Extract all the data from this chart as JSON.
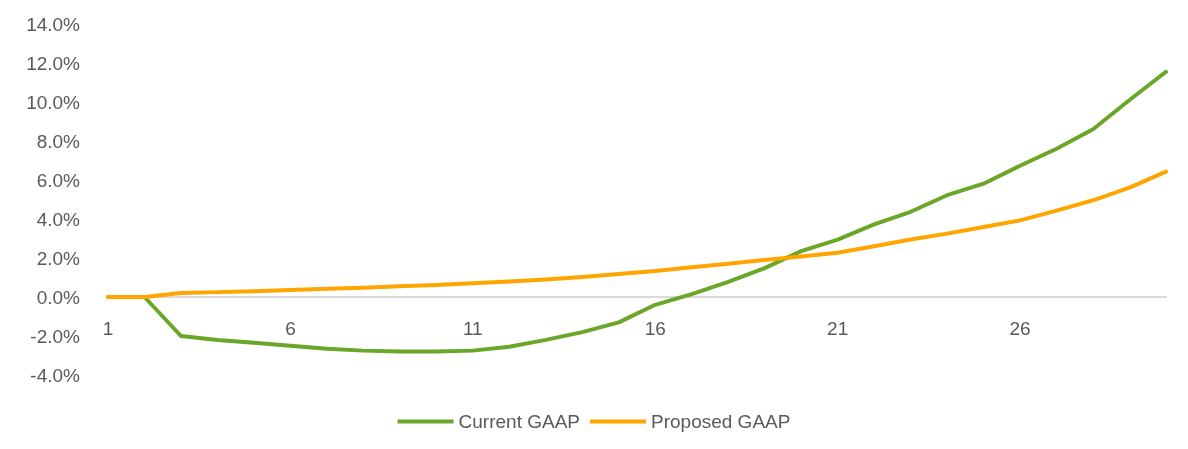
{
  "chart_data": {
    "type": "line",
    "categories": [
      "1",
      null,
      null,
      null,
      null,
      "6",
      null,
      null,
      null,
      null,
      "11",
      null,
      null,
      null,
      null,
      "16",
      null,
      null,
      null,
      null,
      "21",
      null,
      null,
      null,
      null,
      "26",
      null,
      null,
      null,
      null
    ],
    "series": [
      {
        "name": "Current GAAP",
        "color": "#6aa628",
        "values": [
          0,
          0,
          -2.0,
          -2.2,
          -2.35,
          -2.5,
          -2.65,
          -2.75,
          -2.8,
          -2.8,
          -2.75,
          -2.55,
          -2.2,
          -1.8,
          -1.3,
          -0.4,
          0.15,
          0.78,
          1.48,
          2.35,
          2.94,
          3.72,
          4.37,
          5.22,
          5.81,
          6.73,
          7.6,
          8.6,
          10.1,
          11.55
        ]
      },
      {
        "name": "Proposed GAAP",
        "color": "#ffa500",
        "values": [
          0,
          0,
          0.2,
          0.25,
          0.3,
          0.36,
          0.42,
          0.48,
          0.55,
          0.62,
          0.7,
          0.8,
          0.9,
          1.03,
          1.18,
          1.33,
          1.52,
          1.7,
          1.9,
          2.08,
          2.27,
          2.6,
          2.95,
          3.25,
          3.59,
          3.93,
          4.43,
          4.96,
          5.61,
          6.43
        ]
      }
    ],
    "ylim": [
      -4,
      14
    ],
    "yticks": [
      {
        "value": -4,
        "label": "-4.0%"
      },
      {
        "value": -2,
        "label": "-2.0%"
      },
      {
        "value": 0,
        "label": "0.0%"
      },
      {
        "value": 2,
        "label": "2.0%"
      },
      {
        "value": 4,
        "label": "4.0%"
      },
      {
        "value": 6,
        "label": "6.0%"
      },
      {
        "value": 8,
        "label": "8.0%"
      },
      {
        "value": 10,
        "label": "10.0%"
      },
      {
        "value": 12,
        "label": "12.0%"
      },
      {
        "value": 14,
        "label": "14.0%"
      }
    ],
    "grid": false,
    "legend": "bottom",
    "marker": "none",
    "line_style": "solid"
  }
}
